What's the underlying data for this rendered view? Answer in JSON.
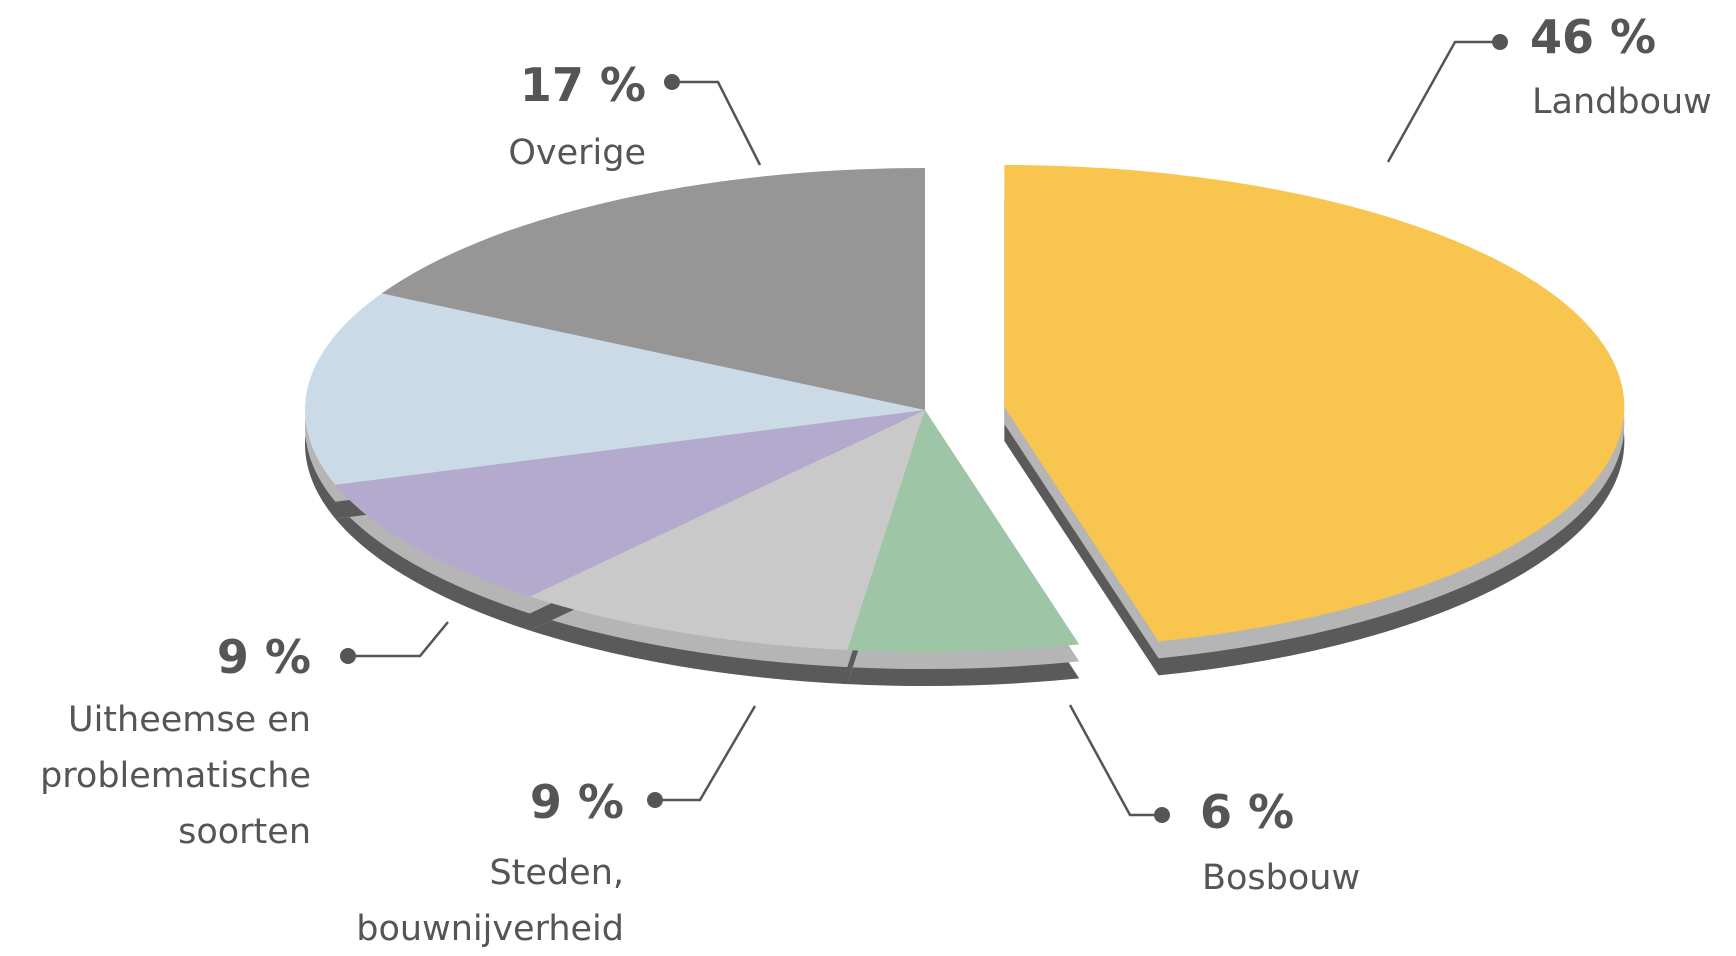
{
  "chart_data": {
    "type": "pie",
    "categories": [
      "Landbouw",
      "Bosbouw",
      "Steden, bouwnijverheid",
      "Uitheemse en problematische soorten",
      null,
      "Overige"
    ],
    "values": [
      46,
      6,
      9,
      9,
      13,
      17
    ],
    "value_labels": [
      "46 %",
      "6 %",
      "9 %",
      "9 %",
      null,
      "17 %"
    ],
    "colors": [
      "#f8c64f",
      "#9dc5a6",
      "#c9c9c9",
      "#b4aacd",
      "#cbdae7",
      "#969696"
    ]
  }
}
